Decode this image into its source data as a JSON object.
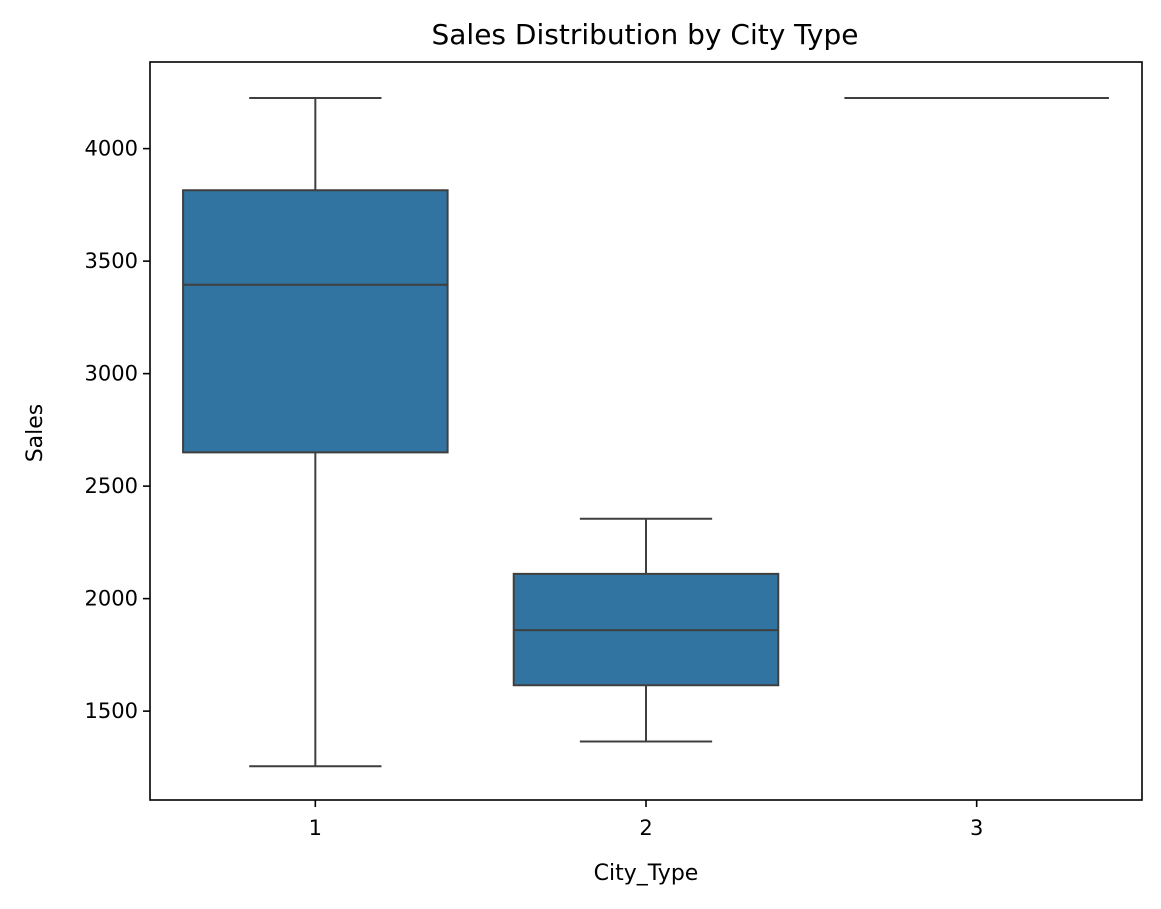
{
  "chart_data": {
    "type": "box",
    "title": "Sales Distribution by City Type",
    "xlabel": "City_Type",
    "ylabel": "Sales",
    "categories": [
      "1",
      "2",
      "3"
    ],
    "y_ticks": [
      1500,
      2000,
      2500,
      3000,
      3500,
      4000
    ],
    "ylim": [
      1105,
      4385
    ],
    "grid": false,
    "boxes": [
      {
        "category": "1",
        "min": 1255,
        "q1": 2650,
        "median": 3395,
        "q3": 3815,
        "max": 4225
      },
      {
        "category": "2",
        "min": 1365,
        "q1": 1615,
        "median": 1860,
        "q3": 2110,
        "max": 2355
      },
      {
        "category": "3",
        "min": 4225,
        "q1": 4225,
        "median": 4225,
        "q3": 4225,
        "max": 4225
      }
    ],
    "colors": {
      "box_fill": "#3274a1",
      "line": "#3f3f3f",
      "axis": "#000000"
    }
  }
}
